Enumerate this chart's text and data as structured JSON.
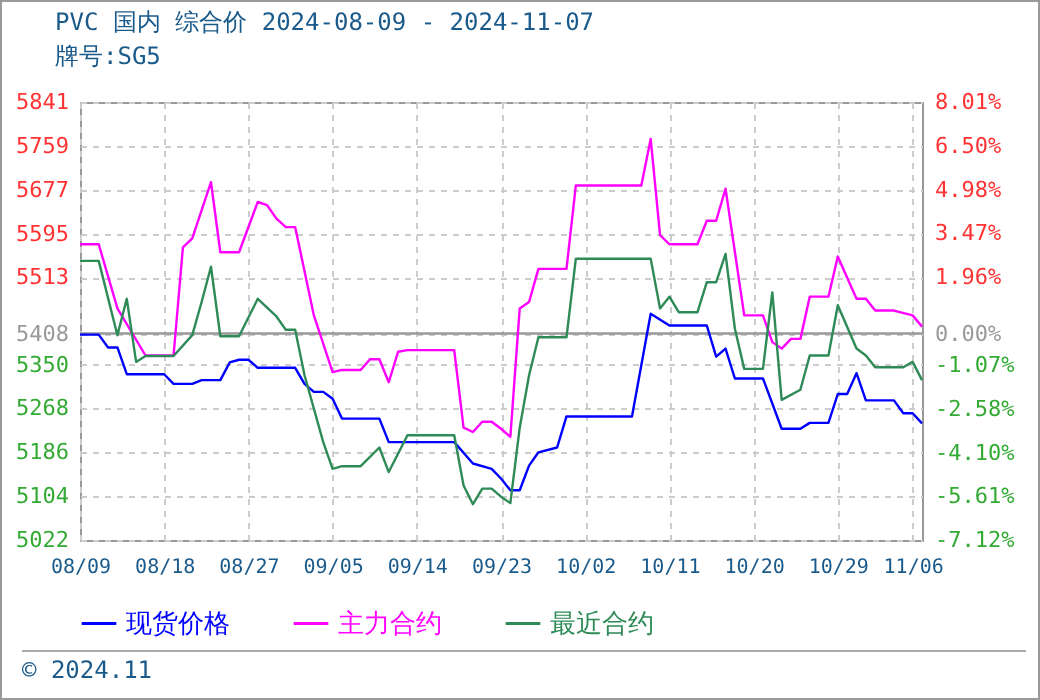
{
  "chart_data": {
    "type": "line",
    "title": "PVC 国内 综合价 2024-08-09 - 2024-11-07",
    "subtitle": "牌号:SG5",
    "series": [
      {
        "name": "现货价格",
        "color": "#0000ff",
        "x": [
          "2024-08-09",
          "2024-08-11",
          "2024-08-12",
          "2024-08-13",
          "2024-08-14",
          "2024-08-18",
          "2024-08-19",
          "2024-08-21",
          "2024-08-22",
          "2024-08-24",
          "2024-08-25",
          "2024-08-26",
          "2024-08-27",
          "2024-08-28",
          "2024-09-01",
          "2024-09-02",
          "2024-09-03",
          "2024-09-04",
          "2024-09-05",
          "2024-09-06",
          "2024-09-10",
          "2024-09-11",
          "2024-09-18",
          "2024-09-20",
          "2024-09-22",
          "2024-09-23",
          "2024-09-24",
          "2024-09-25",
          "2024-09-26",
          "2024-09-27",
          "2024-09-29",
          "2024-09-30",
          "2024-10-07",
          "2024-10-09",
          "2024-10-11",
          "2024-10-15",
          "2024-10-16",
          "2024-10-17",
          "2024-10-18",
          "2024-10-21",
          "2024-10-23",
          "2024-10-25",
          "2024-10-26",
          "2024-10-28",
          "2024-10-29",
          "2024-10-30",
          "2024-10-31",
          "2024-11-01",
          "2024-11-04",
          "2024-11-05",
          "2024-11-06",
          "2024-11-07"
        ],
        "values": [
          5406,
          5406,
          5382,
          5382,
          5332,
          5332,
          5314,
          5314,
          5321,
          5321,
          5354,
          5359,
          5359,
          5344,
          5344,
          5314,
          5299,
          5299,
          5286,
          5249,
          5249,
          5205,
          5205,
          5165,
          5155,
          5137,
          5115,
          5115,
          5161,
          5186,
          5195,
          5253,
          5253,
          5445,
          5423,
          5423,
          5365,
          5380,
          5324,
          5324,
          5230,
          5230,
          5241,
          5241,
          5295,
          5295,
          5334,
          5283,
          5283,
          5259,
          5259,
          5240
        ]
      },
      {
        "name": "主力合约",
        "color": "#ff00ff",
        "x": [
          "2024-08-09",
          "2024-08-11",
          "2024-08-13",
          "2024-08-16",
          "2024-08-19",
          "2024-08-20",
          "2024-08-21",
          "2024-08-23",
          "2024-08-24",
          "2024-08-26",
          "2024-08-28",
          "2024-08-29",
          "2024-08-30",
          "2024-08-31",
          "2024-09-01",
          "2024-09-03",
          "2024-09-05",
          "2024-09-06",
          "2024-09-08",
          "2024-09-09",
          "2024-09-10",
          "2024-09-11",
          "2024-09-12",
          "2024-09-13",
          "2024-09-18",
          "2024-09-19",
          "2024-09-20",
          "2024-09-21",
          "2024-09-22",
          "2024-09-23",
          "2024-09-24",
          "2024-09-25",
          "2024-09-26",
          "2024-09-27",
          "2024-09-30",
          "2024-10-01",
          "2024-10-08",
          "2024-10-09",
          "2024-10-10",
          "2024-10-11",
          "2024-10-14",
          "2024-10-15",
          "2024-10-16",
          "2024-10-17",
          "2024-10-19",
          "2024-10-21",
          "2024-10-22",
          "2024-10-23",
          "2024-10-24",
          "2024-10-25",
          "2024-10-26",
          "2024-10-28",
          "2024-10-29",
          "2024-10-31",
          "2024-11-01",
          "2024-11-02",
          "2024-11-04",
          "2024-11-06",
          "2024-11-07"
        ],
        "values": [
          5575,
          5575,
          5455,
          5367,
          5367,
          5569,
          5586,
          5691,
          5560,
          5560,
          5654,
          5648,
          5623,
          5607,
          5607,
          5442,
          5336,
          5340,
          5340,
          5360,
          5360,
          5317,
          5374,
          5377,
          5377,
          5232,
          5224,
          5243,
          5243,
          5230,
          5215,
          5455,
          5467,
          5529,
          5529,
          5685,
          5685,
          5772,
          5592,
          5575,
          5575,
          5619,
          5619,
          5679,
          5442,
          5442,
          5392,
          5380,
          5398,
          5398,
          5477,
          5477,
          5552,
          5473,
          5473,
          5451,
          5451,
          5442,
          5421
        ]
      },
      {
        "name": "最近合约",
        "color": "#2e8b57",
        "x": [
          "2024-08-09",
          "2024-08-11",
          "2024-08-13",
          "2024-08-14",
          "2024-08-15",
          "2024-08-16",
          "2024-08-19",
          "2024-08-21",
          "2024-08-22",
          "2024-08-23",
          "2024-08-24",
          "2024-08-26",
          "2024-08-28",
          "2024-08-30",
          "2024-08-31",
          "2024-09-01",
          "2024-09-02",
          "2024-09-04",
          "2024-09-05",
          "2024-09-06",
          "2024-09-08",
          "2024-09-10",
          "2024-09-11",
          "2024-09-13",
          "2024-09-18",
          "2024-09-19",
          "2024-09-20",
          "2024-09-21",
          "2024-09-22",
          "2024-09-23",
          "2024-09-24",
          "2024-09-25",
          "2024-09-26",
          "2024-09-27",
          "2024-09-30",
          "2024-10-01",
          "2024-10-09",
          "2024-10-10",
          "2024-10-11",
          "2024-10-12",
          "2024-10-14",
          "2024-10-15",
          "2024-10-16",
          "2024-10-17",
          "2024-10-18",
          "2024-10-19",
          "2024-10-21",
          "2024-10-22",
          "2024-10-23",
          "2024-10-25",
          "2024-10-26",
          "2024-10-28",
          "2024-10-29",
          "2024-10-31",
          "2024-11-01",
          "2024-11-02",
          "2024-11-05",
          "2024-11-06",
          "2024-11-07"
        ],
        "values": [
          5544,
          5544,
          5405,
          5473,
          5355,
          5366,
          5366,
          5405,
          5467,
          5533,
          5403,
          5403,
          5473,
          5440,
          5415,
          5415,
          5330,
          5205,
          5155,
          5160,
          5160,
          5195,
          5149,
          5218,
          5218,
          5124,
          5089,
          5118,
          5118,
          5103,
          5091,
          5232,
          5330,
          5401,
          5401,
          5548,
          5548,
          5455,
          5477,
          5448,
          5448,
          5504,
          5504,
          5557,
          5417,
          5342,
          5342,
          5485,
          5284,
          5303,
          5367,
          5367,
          5461,
          5380,
          5367,
          5345,
          5345,
          5355,
          5321
        ]
      }
    ],
    "xlim": [
      "2024-08-09",
      "2024-11-07"
    ],
    "xticks": [
      {
        "value": "2024-08-09",
        "label": "08/09"
      },
      {
        "value": "2024-08-18",
        "label": "08/18"
      },
      {
        "value": "2024-08-27",
        "label": "08/27"
      },
      {
        "value": "2024-09-05",
        "label": "09/05"
      },
      {
        "value": "2024-09-14",
        "label": "09/14"
      },
      {
        "value": "2024-09-23",
        "label": "09/23"
      },
      {
        "value": "2024-10-02",
        "label": "10/02"
      },
      {
        "value": "2024-10-11",
        "label": "10/11"
      },
      {
        "value": "2024-10-20",
        "label": "10/20"
      },
      {
        "value": "2024-10-29",
        "label": "10/29"
      },
      {
        "value": "2024-11-06",
        "label": "11/06"
      }
    ],
    "ylim": [
      5022,
      5841
    ],
    "yticks": [
      5022,
      5104,
      5186,
      5268,
      5350,
      5408,
      5513,
      5595,
      5677,
      5759,
      5841
    ],
    "y2lim": [
      -7.12,
      8.01
    ],
    "y2ticks": [
      {
        "value": -7.12,
        "label": "-7.12%"
      },
      {
        "value": -5.61,
        "label": "-5.61%"
      },
      {
        "value": -4.1,
        "label": "-4.10%"
      },
      {
        "value": -2.58,
        "label": "-2.58%"
      },
      {
        "value": -1.07,
        "label": "-1.07%"
      },
      {
        "value": 0,
        "label": "0.00%"
      },
      {
        "value": 1.96,
        "label": "1.96%"
      },
      {
        "value": 3.47,
        "label": "3.47%"
      },
      {
        "value": 4.98,
        "label": "4.98%"
      },
      {
        "value": 6.5,
        "label": "6.50%"
      },
      {
        "value": 8.01,
        "label": "8.01%"
      }
    ],
    "ref_lines": [
      {
        "axis": "y",
        "value": 5408,
        "color": "#999999",
        "line_style": "solid"
      }
    ],
    "grid": true,
    "legend": "bottom",
    "marker": "none",
    "line_style": "solid",
    "annotations": [
      "© 2024.11"
    ]
  }
}
